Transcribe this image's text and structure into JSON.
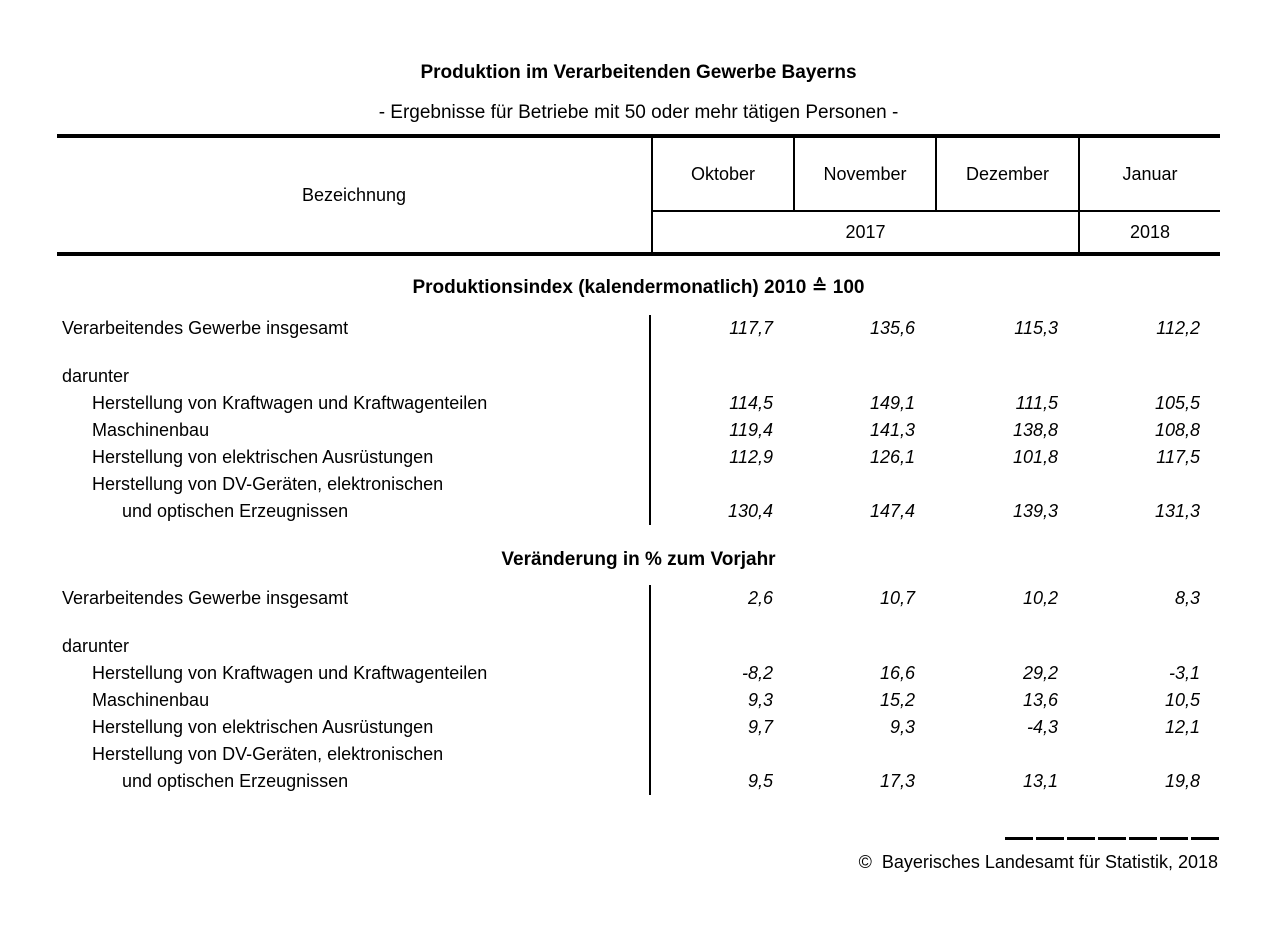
{
  "title": "Produktion im Verarbeitenden Gewerbe Bayerns",
  "subtitle": "- Ergebnisse für Betriebe mit 50 oder mehr tätigen Personen -",
  "colors": {
    "text": "#000000",
    "background": "#ffffff",
    "rule": "#000000"
  },
  "table": {
    "header": {
      "label_column": "Bezeichnung",
      "months": [
        "Oktober",
        "November",
        "Dezember",
        "Januar"
      ],
      "year_2017": "2017",
      "year_2018": "2018"
    },
    "sections": [
      {
        "heading": "Produktionsindex (kalendermonatlich) 2010 ≙ 100",
        "rows": [
          {
            "label": "Verarbeitendes Gewerbe insgesamt",
            "indent": 0,
            "values": [
              "117,7",
              "135,6",
              "115,3",
              "112,2"
            ]
          },
          {
            "spacer": true
          },
          {
            "label": "darunter",
            "indent": 0,
            "values": [
              "",
              "",
              "",
              ""
            ]
          },
          {
            "label": "Herstellung von Kraftwagen und Kraftwagenteilen",
            "indent": 1,
            "values": [
              "114,5",
              "149,1",
              "111,5",
              "105,5"
            ]
          },
          {
            "label": "Maschinenbau",
            "indent": 1,
            "values": [
              "119,4",
              "141,3",
              "138,8",
              "108,8"
            ]
          },
          {
            "label": "Herstellung von elektrischen Ausrüstungen",
            "indent": 1,
            "values": [
              "112,9",
              "126,1",
              "101,8",
              "117,5"
            ]
          },
          {
            "label": "Herstellung von DV-Geräten, elektronischen",
            "indent": 1,
            "values": [
              "",
              "",
              "",
              ""
            ]
          },
          {
            "label": "und optischen Erzeugnissen",
            "indent": 2,
            "values": [
              "130,4",
              "147,4",
              "139,3",
              "131,3"
            ]
          }
        ]
      },
      {
        "heading": "Veränderung in % zum Vorjahr",
        "rows": [
          {
            "label": "Verarbeitendes Gewerbe insgesamt",
            "indent": 0,
            "values": [
              "2,6",
              "10,7",
              "10,2",
              "8,3"
            ]
          },
          {
            "spacer": true
          },
          {
            "label": "darunter",
            "indent": 0,
            "values": [
              "",
              "",
              "",
              ""
            ]
          },
          {
            "label": "Herstellung von Kraftwagen und Kraftwagenteilen",
            "indent": 1,
            "values": [
              "-8,2",
              "16,6",
              "29,2",
              "-3,1"
            ]
          },
          {
            "label": "Maschinenbau",
            "indent": 1,
            "values": [
              "9,3",
              "15,2",
              "13,6",
              "10,5"
            ]
          },
          {
            "label": "Herstellung von elektrischen Ausrüstungen",
            "indent": 1,
            "values": [
              "9,7",
              "9,3",
              "-4,3",
              "12,1"
            ]
          },
          {
            "label": "Herstellung von DV-Geräten, elektronischen",
            "indent": 1,
            "values": [
              "",
              "",
              "",
              ""
            ]
          },
          {
            "label": "und optischen Erzeugnissen",
            "indent": 2,
            "values": [
              "9,5",
              "17,3",
              "13,1",
              "19,8"
            ]
          }
        ]
      }
    ]
  },
  "footer": {
    "copyright": "©  Bayerisches Landesamt für Statistik, 2018"
  }
}
